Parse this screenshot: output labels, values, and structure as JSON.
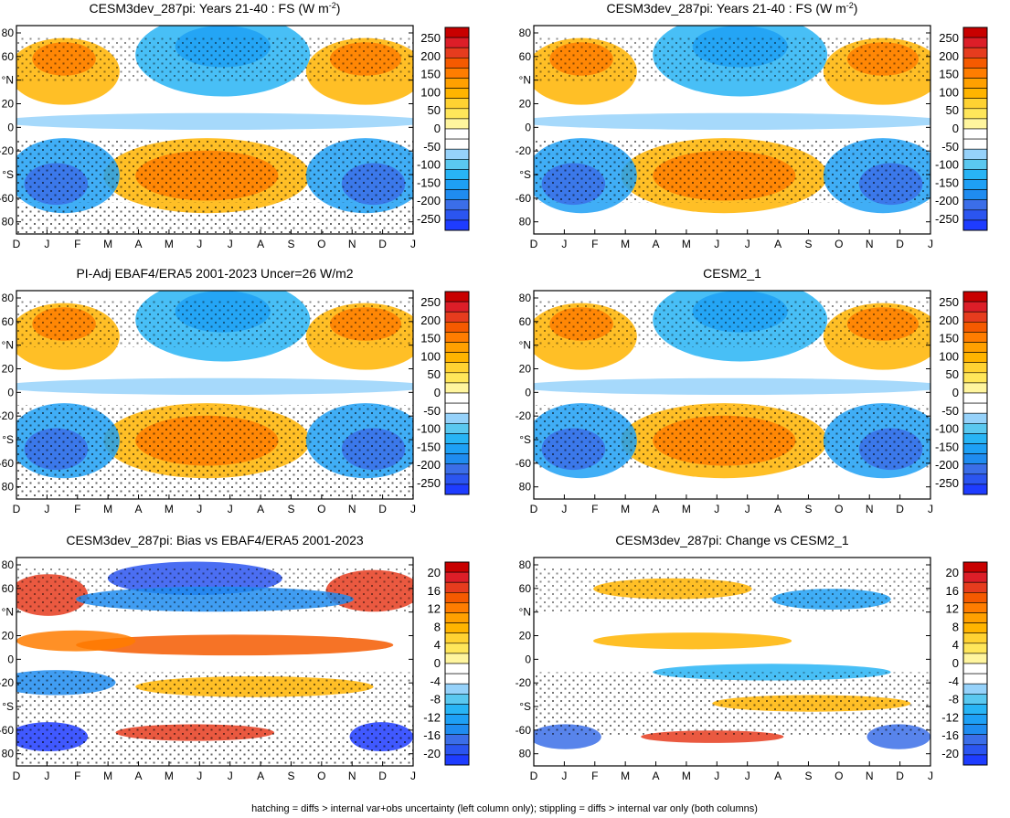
{
  "figure": {
    "caption": "hatching = diffs > internal var+obs uncertainty (left column only); stippling = diffs > internal var only (both columns)"
  },
  "palettes": {
    "main": [
      "#1e3cff",
      "#2b55f0",
      "#3b6ee8",
      "#1f8cf0",
      "#1ea0f5",
      "#28b4f5",
      "#5ac8f0",
      "#96d2fa",
      "#ffffff",
      "#ffffff",
      "#fff59e",
      "#ffe65a",
      "#ffd232",
      "#ffb400",
      "#ffa000",
      "#ff7d00",
      "#f55a00",
      "#e63c1e",
      "#dc1e28",
      "#c80000"
    ],
    "bias": [
      "#1e3cff",
      "#2b55f0",
      "#3b6ee8",
      "#1f8cf0",
      "#1ea0f5",
      "#28b4f5",
      "#5ac8f0",
      "#96d2fa",
      "#ffffff",
      "#ffffff",
      "#fff59e",
      "#ffe65a",
      "#ffd232",
      "#ffb400",
      "#ffa000",
      "#ff7d00",
      "#f55a00",
      "#e63c1e",
      "#dc1e28",
      "#c80000"
    ]
  },
  "axes": {
    "months": [
      "D",
      "J",
      "F",
      "M",
      "A",
      "M",
      "J",
      "J",
      "A",
      "S",
      "O",
      "N",
      "D",
      "J"
    ],
    "lat_ticks": [
      "80",
      "60",
      "°N",
      "20",
      "0",
      "-20",
      "°S",
      "-60",
      "80"
    ]
  },
  "panels": [
    {
      "id": "cesm3-years-21-40-left",
      "title": "CESM3dev_287pi: Years 21-40 : FS (W m",
      "title_sup": "-2",
      "title_tail": ")",
      "cb_labels": [
        "250",
        "200",
        "150",
        "100",
        "50",
        "0",
        "-50",
        "-100",
        "-150",
        "-200",
        "-250"
      ],
      "palette": "main"
    },
    {
      "id": "cesm3-years-21-40-right",
      "title": "CESM3dev_287pi: Years 21-40 : FS (W m",
      "title_sup": "-2",
      "title_tail": ")",
      "cb_labels": [
        "250",
        "200",
        "150",
        "100",
        "50",
        "0",
        "-50",
        "-100",
        "-150",
        "-200",
        "-250"
      ],
      "palette": "main"
    },
    {
      "id": "pi-adj-ebaf4-era5",
      "title": "PI-Adj EBAF4/ERA5 2001-2023 Uncer=26 W/m2",
      "title_sup": "",
      "title_tail": "",
      "cb_labels": [
        "250",
        "200",
        "150",
        "100",
        "50",
        "0",
        "-50",
        "-100",
        "-150",
        "-200",
        "-250"
      ],
      "palette": "main"
    },
    {
      "id": "cesm2-1",
      "title": "CESM2_1",
      "title_sup": "",
      "title_tail": "",
      "cb_labels": [
        "250",
        "200",
        "150",
        "100",
        "50",
        "0",
        "-50",
        "-100",
        "-150",
        "-200",
        "-250"
      ],
      "palette": "main"
    },
    {
      "id": "bias-vs-ebaf4-era5",
      "title": "CESM3dev_287pi: Bias vs EBAF4/ERA5 2001-2023",
      "title_sup": "",
      "title_tail": "",
      "cb_labels": [
        "20",
        "16",
        "12",
        "8",
        "4",
        "0",
        "-4",
        "-8",
        "-12",
        "-16",
        "-20"
      ],
      "palette": "bias"
    },
    {
      "id": "change-vs-cesm2-1",
      "title": "CESM3dev_287pi: Change vs CESM2_1",
      "title_sup": "",
      "title_tail": "",
      "cb_labels": [
        "20",
        "16",
        "12",
        "8",
        "4",
        "0",
        "-4",
        "-8",
        "-12",
        "-16",
        "-20"
      ],
      "palette": "bias"
    }
  ],
  "chart_data": [
    {
      "type": "heatmap",
      "title": "CESM3dev_287pi: Years 21-40 : FS (W m-2)",
      "x_ticks": [
        "D",
        "J",
        "F",
        "M",
        "A",
        "M",
        "J",
        "J",
        "A",
        "S",
        "O",
        "N",
        "D",
        "J"
      ],
      "y_ticks": [
        "80",
        "60",
        "°N",
        "20",
        "0",
        "-20",
        "°S",
        "-60",
        "80"
      ],
      "ylim": [
        -90,
        90
      ],
      "colorbar": [
        -250,
        250
      ],
      "features": [
        {
          "lat": 40,
          "month": "Dec",
          "value": 150
        },
        {
          "lat": -40,
          "month": "Jun",
          "value": 150
        },
        {
          "lat": 60,
          "month": "Jul",
          "value": -150
        },
        {
          "lat": -50,
          "month": "Dec",
          "value": -200
        }
      ]
    },
    {
      "type": "heatmap",
      "title": "CESM3dev_287pi: Years 21-40 : FS (W m-2)",
      "x_ticks": [
        "D",
        "J",
        "F",
        "M",
        "A",
        "M",
        "J",
        "J",
        "A",
        "S",
        "O",
        "N",
        "D",
        "J"
      ],
      "y_ticks": [
        "80",
        "60",
        "°N",
        "20",
        "0",
        "-20",
        "°S",
        "-60",
        "80"
      ],
      "ylim": [
        -90,
        90
      ],
      "colorbar": [
        -250,
        250
      ]
    },
    {
      "type": "heatmap",
      "title": "PI-Adj EBAF4/ERA5 2001-2023 Uncer=26 W/m2",
      "x_ticks": [
        "D",
        "J",
        "F",
        "M",
        "A",
        "M",
        "J",
        "J",
        "A",
        "S",
        "O",
        "N",
        "D",
        "J"
      ],
      "y_ticks": [
        "80",
        "60",
        "°N",
        "20",
        "0",
        "-20",
        "°S",
        "-60",
        "80"
      ],
      "ylim": [
        -90,
        90
      ],
      "colorbar": [
        -250,
        250
      ]
    },
    {
      "type": "heatmap",
      "title": "CESM2_1",
      "x_ticks": [
        "D",
        "J",
        "F",
        "M",
        "A",
        "M",
        "J",
        "J",
        "A",
        "S",
        "O",
        "N",
        "D",
        "J"
      ],
      "y_ticks": [
        "80",
        "60",
        "°N",
        "20",
        "0",
        "-20",
        "°S",
        "-60",
        "80"
      ],
      "ylim": [
        -90,
        90
      ],
      "colorbar": [
        -250,
        250
      ]
    },
    {
      "type": "heatmap",
      "title": "CESM3dev_287pi: Bias vs EBAF4/ERA5 2001-2023",
      "x_ticks": [
        "D",
        "J",
        "F",
        "M",
        "A",
        "M",
        "J",
        "J",
        "A",
        "S",
        "O",
        "N",
        "D",
        "J"
      ],
      "y_ticks": [
        "80",
        "60",
        "°N",
        "20",
        "0",
        "-20",
        "°S",
        "-60",
        "80"
      ],
      "ylim": [
        -90,
        90
      ],
      "colorbar": [
        -20,
        20
      ]
    },
    {
      "type": "heatmap",
      "title": "CESM3dev_287pi: Change vs CESM2_1",
      "x_ticks": [
        "D",
        "J",
        "F",
        "M",
        "A",
        "M",
        "J",
        "J",
        "A",
        "S",
        "O",
        "N",
        "D",
        "J"
      ],
      "y_ticks": [
        "80",
        "60",
        "°N",
        "20",
        "0",
        "-20",
        "°S",
        "-60",
        "80"
      ],
      "ylim": [
        -90,
        90
      ],
      "colorbar": [
        -20,
        20
      ]
    }
  ]
}
